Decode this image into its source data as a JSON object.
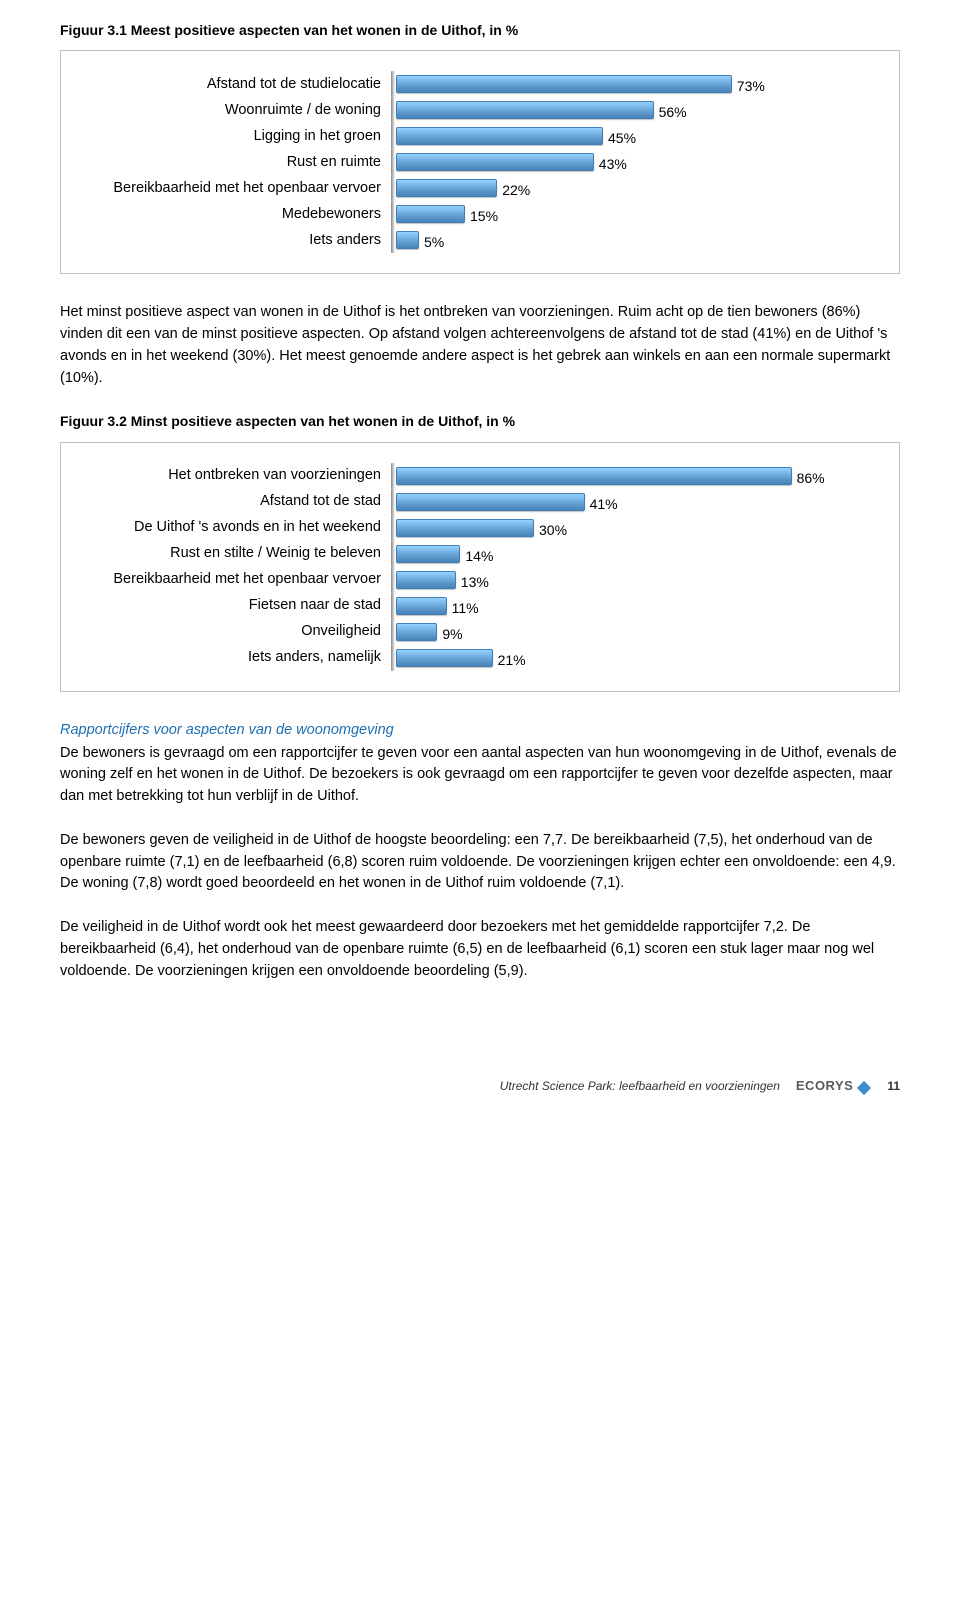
{
  "figure1": {
    "title": "Figuur 3.1 Meest positieve aspecten van het wonen in de Uithof, in %",
    "type": "bar",
    "bar_color": "#6aa6d9",
    "bar_border": "#3f7fb6",
    "max": 100,
    "items": [
      {
        "label": "Afstand tot de studielocatie",
        "value": 73,
        "display": "73%"
      },
      {
        "label": "Woonruimte / de woning",
        "value": 56,
        "display": "56%"
      },
      {
        "label": "Ligging in het groen",
        "value": 45,
        "display": "45%"
      },
      {
        "label": "Rust en ruimte",
        "value": 43,
        "display": "43%"
      },
      {
        "label": "Bereikbaarheid met het openbaar vervoer",
        "value": 22,
        "display": "22%"
      },
      {
        "label": "Medebewoners",
        "value": 15,
        "display": "15%"
      },
      {
        "label": "Iets anders",
        "value": 5,
        "display": "5%"
      }
    ]
  },
  "para1": "Het minst positieve aspect van wonen in de Uithof is het ontbreken van voorzieningen. Ruim acht op de tien bewoners (86%) vinden dit een van de minst positieve aspecten. Op afstand volgen achtereenvolgens de afstand tot de stad (41%) en de Uithof 's avonds en in het weekend (30%). Het meest genoemde andere aspect is het gebrek aan winkels en aan een normale supermarkt (10%).",
  "figure2": {
    "title": "Figuur 3.2 Minst positieve aspecten van het wonen in de Uithof, in %",
    "type": "bar",
    "bar_color": "#6aa6d9",
    "bar_border": "#3f7fb6",
    "max": 100,
    "items": [
      {
        "label": "Het ontbreken van voorzieningen",
        "value": 86,
        "display": "86%"
      },
      {
        "label": "Afstand tot de stad",
        "value": 41,
        "display": "41%"
      },
      {
        "label": "De Uithof 's avonds en in het weekend",
        "value": 30,
        "display": "30%"
      },
      {
        "label": "Rust en stilte / Weinig te beleven",
        "value": 14,
        "display": "14%"
      },
      {
        "label": "Bereikbaarheid met het openbaar vervoer",
        "value": 13,
        "display": "13%"
      },
      {
        "label": "Fietsen naar de stad",
        "value": 11,
        "display": "11%"
      },
      {
        "label": "Onveiligheid",
        "value": 9,
        "display": "9%"
      },
      {
        "label": "Iets anders, namelijk",
        "value": 21,
        "display": "21%"
      }
    ]
  },
  "subhead": "Rapportcijfers voor aspecten van de woonomgeving",
  "para2": "De bewoners is gevraagd om een rapportcijfer te geven voor een aantal aspecten van hun woonomgeving in de Uithof, evenals de woning zelf en het wonen in de Uithof. De bezoekers is ook gevraagd om een rapportcijfer te geven voor dezelfde aspecten, maar dan met betrekking tot hun verblijf in de Uithof.",
  "para3": "De bewoners geven de veiligheid in de Uithof de hoogste beoordeling: een 7,7. De bereikbaarheid (7,5), het onderhoud van de openbare ruimte (7,1) en de leefbaarheid (6,8) scoren ruim voldoende. De voorzieningen krijgen echter een onvoldoende: een 4,9. De woning (7,8) wordt goed beoordeeld en het wonen in de Uithof ruim voldoende (7,1).",
  "para4": "De veiligheid in de Uithof wordt ook het meest gewaardeerd door bezoekers met het gemiddelde rapportcijfer 7,2. De bereikbaarheid (6,4), het onderhoud van de openbare ruimte (6,5) en de leefbaarheid (6,1) scoren een stuk lager maar nog wel voldoende. De voorzieningen krijgen een onvoldoende beoordeling (5,9).",
  "footer": {
    "doc": "Utrecht Science Park: leefbaarheid en voorzieningen",
    "brand": "ECORYS",
    "page": "11"
  }
}
